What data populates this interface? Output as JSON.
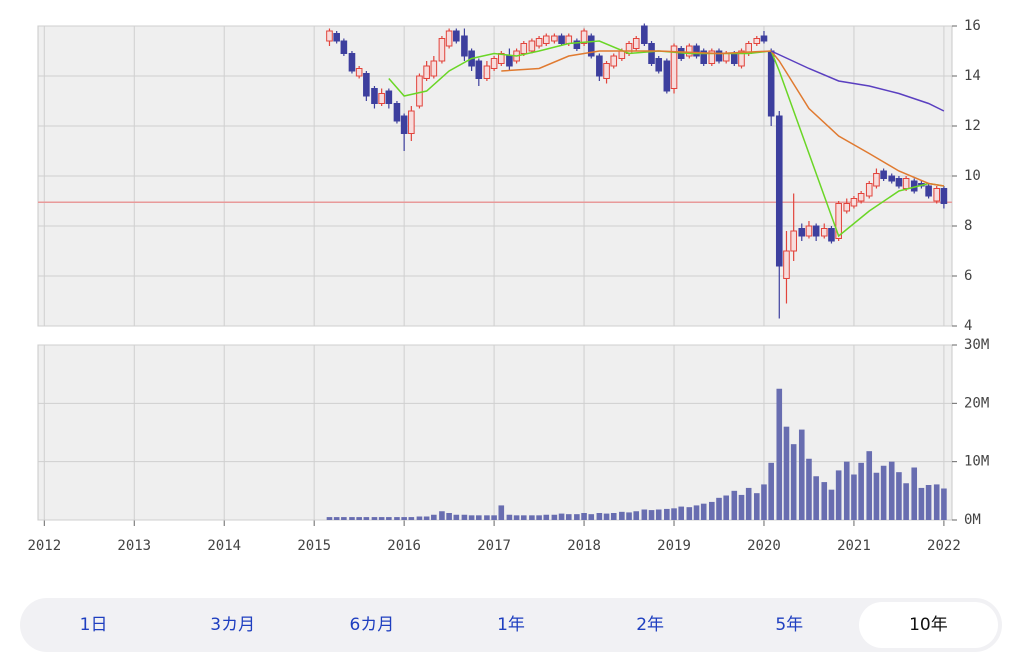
{
  "chart_data": [
    {
      "type": "candlestick",
      "x": [
        2015.17,
        2015.25,
        2015.33,
        2015.42,
        2015.5,
        2015.58,
        2015.67,
        2015.75,
        2015.83,
        2015.92,
        2016.0,
        2016.08,
        2016.17,
        2016.25,
        2016.33,
        2016.42,
        2016.5,
        2016.58,
        2016.67,
        2016.75,
        2016.83,
        2016.92,
        2017.0,
        2017.08,
        2017.17,
        2017.25,
        2017.33,
        2017.42,
        2017.5,
        2017.58,
        2017.67,
        2017.75,
        2017.83,
        2017.92,
        2018.0,
        2018.08,
        2018.17,
        2018.25,
        2018.33,
        2018.42,
        2018.5,
        2018.58,
        2018.67,
        2018.75,
        2018.83,
        2018.92,
        2019.0,
        2019.08,
        2019.17,
        2019.25,
        2019.33,
        2019.42,
        2019.5,
        2019.58,
        2019.67,
        2019.75,
        2019.83,
        2019.92,
        2020.0,
        2020.08,
        2020.17,
        2020.25,
        2020.33,
        2020.42,
        2020.5,
        2020.58,
        2020.67,
        2020.75,
        2020.83,
        2020.92,
        2021.0,
        2021.08,
        2021.17,
        2021.25,
        2021.33,
        2021.42,
        2021.5,
        2021.58,
        2021.67,
        2021.75,
        2021.83,
        2021.92,
        2022.0
      ],
      "open": [
        15.4,
        15.7,
        15.4,
        14.9,
        14.0,
        14.1,
        13.5,
        12.9,
        13.4,
        12.9,
        12.4,
        11.7,
        12.8,
        13.9,
        14.0,
        14.6,
        15.2,
        15.8,
        15.6,
        15.0,
        14.6,
        13.9,
        14.3,
        14.5,
        14.8,
        14.6,
        14.9,
        15.0,
        15.2,
        15.3,
        15.4,
        15.6,
        15.3,
        15.4,
        15.3,
        15.6,
        14.8,
        13.9,
        14.4,
        14.7,
        14.9,
        15.1,
        16.0,
        15.3,
        14.7,
        14.6,
        13.5,
        15.1,
        14.8,
        15.2,
        15.0,
        14.5,
        15.0,
        14.6,
        14.9,
        14.4,
        14.9,
        15.3,
        15.6,
        15.0,
        12.4,
        5.9,
        7.0,
        7.9,
        7.6,
        8.0,
        7.6,
        7.9,
        7.5,
        8.6,
        8.8,
        9.0,
        9.2,
        9.6,
        10.2,
        10.0,
        9.9,
        9.5,
        9.8,
        9.7,
        9.6,
        9.0,
        9.5
      ],
      "close": [
        15.8,
        15.4,
        14.9,
        14.2,
        14.3,
        13.2,
        12.9,
        13.3,
        12.9,
        12.2,
        11.7,
        12.6,
        14.0,
        14.4,
        14.6,
        15.5,
        15.8,
        15.4,
        14.8,
        14.4,
        13.9,
        14.4,
        14.7,
        14.9,
        14.4,
        15.0,
        15.3,
        15.4,
        15.5,
        15.6,
        15.6,
        15.3,
        15.6,
        15.1,
        15.8,
        14.8,
        14.0,
        14.5,
        14.8,
        15.0,
        15.3,
        15.5,
        15.3,
        14.5,
        14.2,
        13.4,
        15.2,
        14.7,
        15.2,
        14.8,
        14.5,
        15.0,
        14.6,
        14.9,
        14.5,
        15.0,
        15.3,
        15.5,
        15.4,
        12.4,
        6.4,
        7.0,
        7.8,
        7.6,
        8.0,
        7.6,
        7.9,
        7.4,
        8.9,
        8.9,
        9.1,
        9.3,
        9.7,
        10.1,
        9.9,
        9.8,
        9.6,
        9.9,
        9.4,
        9.6,
        9.2,
        9.5,
        8.9
      ],
      "high": [
        15.9,
        15.8,
        15.5,
        15.0,
        14.4,
        14.2,
        13.6,
        13.5,
        13.5,
        13.0,
        12.5,
        12.8,
        14.1,
        14.6,
        14.8,
        15.6,
        15.9,
        15.9,
        15.9,
        15.1,
        14.7,
        14.6,
        14.8,
        15.0,
        15.1,
        15.1,
        15.4,
        15.5,
        15.6,
        15.7,
        15.7,
        15.7,
        15.7,
        15.5,
        15.9,
        15.7,
        14.9,
        14.6,
        14.9,
        15.1,
        15.4,
        15.6,
        16.1,
        15.4,
        14.8,
        14.7,
        15.3,
        15.2,
        15.3,
        15.3,
        15.1,
        15.1,
        15.1,
        15.0,
        15.0,
        15.1,
        15.4,
        15.6,
        15.8,
        15.1,
        12.6,
        7.8,
        9.3,
        8.1,
        8.2,
        8.1,
        8.1,
        8.0,
        9.0,
        9.1,
        9.2,
        9.4,
        9.8,
        10.3,
        10.3,
        10.1,
        10.0,
        10.0,
        9.9,
        9.8,
        9.7,
        9.6,
        9.6
      ],
      "low": [
        15.2,
        15.3,
        14.8,
        14.1,
        13.9,
        13.0,
        12.7,
        12.8,
        12.7,
        12.1,
        11.0,
        11.4,
        12.7,
        13.8,
        13.9,
        14.5,
        15.1,
        15.3,
        14.6,
        14.2,
        13.6,
        13.8,
        14.2,
        14.4,
        14.2,
        14.5,
        14.8,
        14.9,
        15.1,
        15.2,
        15.3,
        15.2,
        15.2,
        15.0,
        15.2,
        14.7,
        13.8,
        13.7,
        14.3,
        14.6,
        14.8,
        15.0,
        15.2,
        14.4,
        14.1,
        13.3,
        13.3,
        14.6,
        14.7,
        14.7,
        14.4,
        14.4,
        14.5,
        14.5,
        14.4,
        14.3,
        14.8,
        15.2,
        15.3,
        12.0,
        4.3,
        4.9,
        6.6,
        7.4,
        7.5,
        7.4,
        7.5,
        7.3,
        7.4,
        8.5,
        8.7,
        8.9,
        9.1,
        9.5,
        9.8,
        9.7,
        9.5,
        9.4,
        9.3,
        9.5,
        9.1,
        8.9,
        8.7
      ],
      "up_color": "#e2443c",
      "down_color": "#3d3f9e",
      "moving_averages": [
        {
          "color": "#6ad626",
          "x": [
            2015.83,
            2016.0,
            2016.25,
            2016.5,
            2016.75,
            2017.0,
            2017.25,
            2017.5,
            2017.83,
            2018.17,
            2018.5,
            2018.83,
            2019.17,
            2019.5,
            2019.83,
            2020.08,
            2020.17,
            2020.83,
            2021.17,
            2021.5,
            2021.83,
            2022.0
          ],
          "values": [
            13.9,
            13.2,
            13.4,
            14.2,
            14.7,
            14.9,
            14.8,
            15.0,
            15.3,
            15.4,
            14.9,
            15.0,
            14.9,
            14.9,
            14.9,
            15.0,
            14.2,
            7.6,
            8.6,
            9.4,
            9.7,
            9.6
          ]
        },
        {
          "color": "#e07a30",
          "x": [
            2017.08,
            2017.5,
            2017.83,
            2018.17,
            2018.83,
            2019.5,
            2020.08,
            2020.17,
            2020.5,
            2020.83,
            2021.17,
            2021.5,
            2021.83,
            2022.0
          ],
          "values": [
            14.2,
            14.3,
            14.8,
            15.0,
            15.0,
            14.9,
            15.0,
            14.6,
            12.7,
            11.6,
            10.9,
            10.2,
            9.7,
            9.6
          ]
        },
        {
          "color": "#5a3fc0",
          "x": [
            2020.08,
            2020.5,
            2020.83,
            2021.17,
            2021.5,
            2021.83,
            2022.0
          ],
          "values": [
            15.0,
            14.3,
            13.8,
            13.6,
            13.3,
            12.9,
            12.6
          ]
        }
      ],
      "reference_line": {
        "value": 8.95,
        "color": "#e89a9a"
      },
      "xlim": [
        2011.93,
        2022.09
      ],
      "xticks": [
        2012,
        2013,
        2014,
        2015,
        2016,
        2017,
        2018,
        2019,
        2020,
        2021,
        2022
      ],
      "ylim": [
        4,
        16
      ],
      "yticks": [
        4,
        6,
        8,
        10,
        12,
        14,
        16
      ],
      "grid": true
    },
    {
      "type": "bar",
      "x": [
        2015.17,
        2015.25,
        2015.33,
        2015.42,
        2015.5,
        2015.58,
        2015.67,
        2015.75,
        2015.83,
        2015.92,
        2016.0,
        2016.08,
        2016.17,
        2016.25,
        2016.33,
        2016.42,
        2016.5,
        2016.58,
        2016.67,
        2016.75,
        2016.83,
        2016.92,
        2017.0,
        2017.08,
        2017.17,
        2017.25,
        2017.33,
        2017.42,
        2017.5,
        2017.58,
        2017.67,
        2017.75,
        2017.83,
        2017.92,
        2018.0,
        2018.08,
        2018.17,
        2018.25,
        2018.33,
        2018.42,
        2018.5,
        2018.58,
        2018.67,
        2018.75,
        2018.83,
        2018.92,
        2019.0,
        2019.08,
        2019.17,
        2019.25,
        2019.33,
        2019.42,
        2019.5,
        2019.58,
        2019.67,
        2019.75,
        2019.83,
        2019.92,
        2020.0,
        2020.08,
        2020.17,
        2020.25,
        2020.33,
        2020.42,
        2020.5,
        2020.58,
        2020.67,
        2020.75,
        2020.83,
        2020.92,
        2021.0,
        2021.08,
        2021.17,
        2021.25,
        2021.33,
        2021.42,
        2021.5,
        2021.58,
        2021.67,
        2021.75,
        2021.83,
        2021.92,
        2022.0
      ],
      "values": [
        500000,
        500000,
        500000,
        500000,
        500000,
        500000,
        500000,
        500000,
        500000,
        500000,
        500000,
        500000,
        600000,
        600000,
        900000,
        1500000,
        1200000,
        900000,
        900000,
        800000,
        800000,
        800000,
        800000,
        2500000,
        900000,
        800000,
        800000,
        800000,
        800000,
        900000,
        900000,
        1100000,
        1000000,
        1000000,
        1200000,
        1000000,
        1200000,
        1100000,
        1200000,
        1400000,
        1300000,
        1500000,
        1800000,
        1700000,
        1800000,
        1900000,
        2000000,
        2300000,
        2200000,
        2500000,
        2800000,
        3100000,
        3800000,
        4200000,
        5000000,
        4300000,
        5500000,
        4600000,
        6100000,
        9800000,
        22500000,
        16000000,
        13000000,
        15500000,
        10500000,
        7500000,
        6500000,
        5200000,
        8500000,
        10000000,
        7800000,
        9800000,
        11800000,
        8100000,
        9300000,
        10000000,
        8200000,
        6300000,
        9000000,
        5500000,
        6000000,
        6100000,
        5400000
      ],
      "color": "#686db0",
      "xlim": [
        2011.93,
        2022.09
      ],
      "xticks": [
        2012,
        2013,
        2014,
        2015,
        2016,
        2017,
        2018,
        2019,
        2020,
        2021,
        2022
      ],
      "ylim": [
        0,
        30000000
      ],
      "yticks": [
        {
          "value": 0,
          "label": "0M"
        },
        {
          "value": 10000000,
          "label": "10M"
        },
        {
          "value": 20000000,
          "label": "20M"
        },
        {
          "value": 30000000,
          "label": "30M"
        }
      ],
      "grid": true
    }
  ],
  "range_selector": {
    "options": [
      "1日",
      "3カ月",
      "6カ月",
      "1年",
      "2年",
      "5年",
      "10年"
    ],
    "selected": 6
  }
}
